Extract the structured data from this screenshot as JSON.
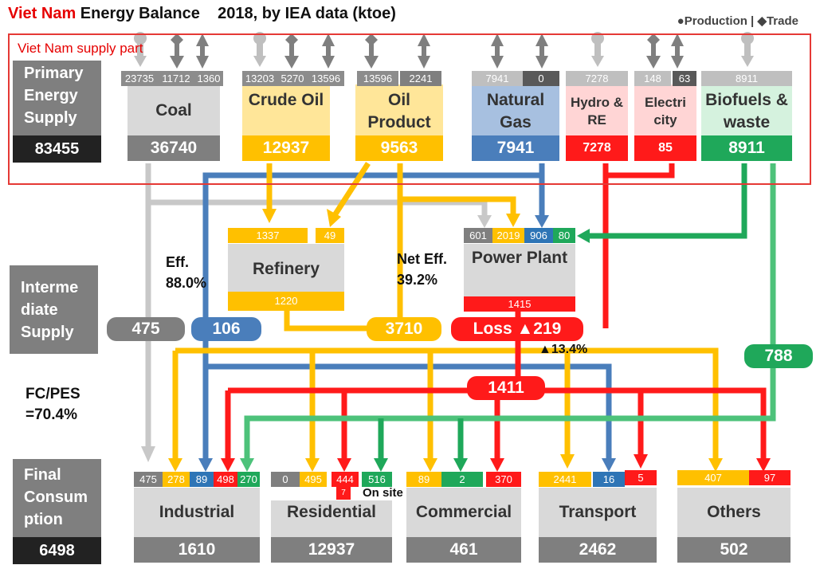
{
  "title": {
    "country": "Viet Nam",
    "rest": "Energy Balance    2018, by IEA data (ktoe)"
  },
  "legend": {
    "production": "●Production |",
    "trade": "◆Trade"
  },
  "supply_label": "Viet Nam supply part",
  "side": {
    "primary": "Primary Energy Supply",
    "primary_value": "83455",
    "intermediate": "Interme diate Supply",
    "fc_pes": "FC/PES =70.4%",
    "final": "Final Consum ption",
    "final_value": "6498"
  },
  "sources": [
    {
      "id": "coal",
      "label": "Coal",
      "total": "36740",
      "cells": [
        "23735",
        "11712",
        "1360"
      ],
      "color": "#7f7f7f"
    },
    {
      "id": "crude-oil",
      "label": "Crude Oil",
      "total": "12937",
      "cells": [
        "13203",
        "5270",
        "13596"
      ],
      "color": "#ffc000"
    },
    {
      "id": "oil-product",
      "label": "Oil Product",
      "total": "9563",
      "cells": [
        "13596",
        "2241"
      ],
      "color": "#ffc000"
    },
    {
      "id": "natural-gas",
      "label": "Natural Gas",
      "total": "7941",
      "cells": [
        "7941",
        "0"
      ],
      "color": "#4a7ebb"
    },
    {
      "id": "hydro-re",
      "label": "Hydro & RE",
      "total": "7278",
      "cells": [
        "7278"
      ],
      "color": "#ff1a1a"
    },
    {
      "id": "electricity",
      "label": "Electri city",
      "total": "85",
      "cells": [
        "148",
        "63"
      ],
      "color": "#ff1a1a"
    },
    {
      "id": "biofuels",
      "label": "Biofuels & waste",
      "total": "8911",
      "cells": [
        "8911"
      ],
      "color": "#1fa85a"
    }
  ],
  "refinery": {
    "label": "Refinery",
    "in1": "1337",
    "in2": "49",
    "out": "1220",
    "eff": "Eff. 88.0%"
  },
  "power": {
    "label": "Power Plant",
    "in": [
      "601",
      "2019",
      "906",
      "80"
    ],
    "out": "1415",
    "net_eff": "Net Eff. 39.2%",
    "loss": "Loss ▲219",
    "loss_pct": "▲13.4%"
  },
  "pills": {
    "coal": "475",
    "gas": "106",
    "oil": "3710",
    "elec": "1411",
    "bio": "788"
  },
  "on_site": "On site",
  "sectors": [
    {
      "id": "industrial",
      "label": "Industrial",
      "total": "1610",
      "cells": [
        "475",
        "278",
        "89",
        "498",
        "270"
      ]
    },
    {
      "id": "residential",
      "label": "Residential",
      "total": "12937",
      "cells": [
        "0",
        "495",
        "444",
        "516"
      ],
      "extra": "7"
    },
    {
      "id": "commercial",
      "label": "Commercial",
      "total": "461",
      "cells": [
        "89",
        "2",
        "370"
      ]
    },
    {
      "id": "transport",
      "label": "Transport",
      "total": "2462",
      "cells": [
        "2441",
        "16",
        "5"
      ]
    },
    {
      "id": "others",
      "label": "Others",
      "total": "502",
      "cells": [
        "407",
        "97"
      ]
    }
  ],
  "colors": {
    "coal": "#bfbfbf",
    "oil": "#ffc000",
    "gas": "#4a7ebb",
    "elec": "#ff1a1a",
    "bio": "#1fa85a",
    "bio_light": "#4dc27a",
    "dark": "#7f7f7f",
    "red_frame": "#e53935"
  }
}
